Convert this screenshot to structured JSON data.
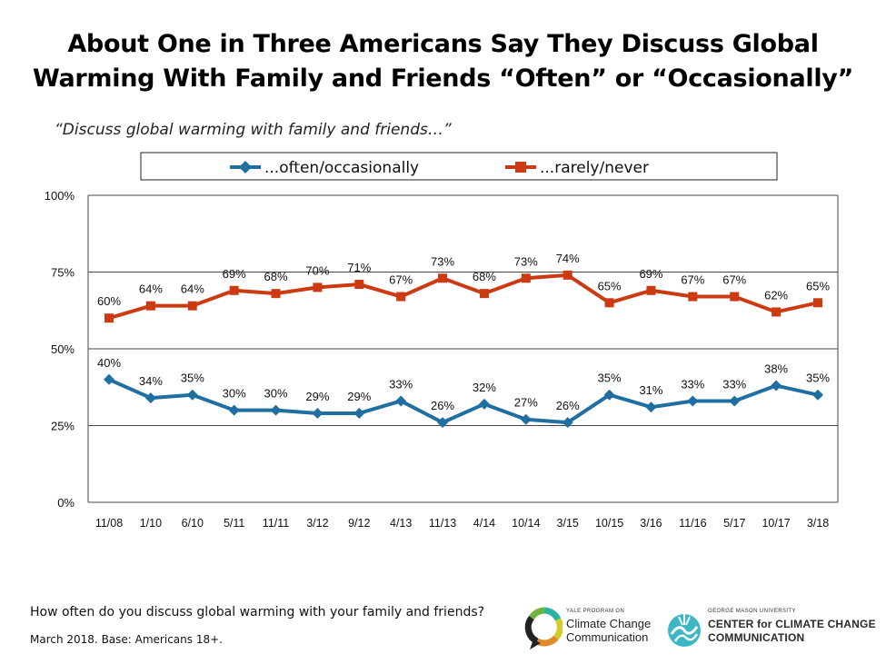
{
  "title_lines": [
    "About One in Three Americans Say They Discuss Global",
    "Warming With Family and Friends “Often” or “Occasionally”"
  ],
  "subtitle": "“Discuss global warming with family and friends…”",
  "colors": {
    "often": "#1f6fa3",
    "rarely": "#cc3a12",
    "grid": "#444444"
  },
  "chart_data": {
    "type": "line",
    "title": "About One in Three Americans Say They Discuss Global Warming With Family and Friends “Often” or “Occasionally”",
    "subtitle": "“Discuss global warming with family and friends…”",
    "categories": [
      "11/08",
      "1/10",
      "6/10",
      "5/11",
      "11/11",
      "3/12",
      "9/12",
      "4/13",
      "11/13",
      "4/14",
      "10/14",
      "3/15",
      "10/15",
      "3/16",
      "11/16",
      "5/17",
      "10/17",
      "3/18"
    ],
    "series": [
      {
        "name": "...often/occasionally",
        "marker": "diamond",
        "values": [
          40,
          34,
          35,
          30,
          30,
          29,
          29,
          33,
          26,
          32,
          27,
          26,
          35,
          31,
          33,
          33,
          38,
          35
        ]
      },
      {
        "name": "...rarely/never",
        "marker": "square",
        "values": [
          60,
          64,
          64,
          69,
          68,
          70,
          71,
          67,
          73,
          68,
          73,
          74,
          65,
          69,
          67,
          67,
          62,
          65
        ]
      }
    ],
    "ylim": [
      0,
      100
    ],
    "yticks": [
      0,
      25,
      50,
      75,
      100
    ],
    "ytick_labels": [
      "0%",
      "25%",
      "50%",
      "75%",
      "100%"
    ],
    "value_suffix": "%",
    "grid": "horizontal",
    "legend_position": "top"
  },
  "footer": {
    "question": "How often do you discuss global warming with your family and friends?",
    "source": "March 2018. Base: Americans 18+."
  },
  "logos": {
    "yale": {
      "line1": "YALE PROGRAM ON",
      "line2": "Climate Change",
      "line3": "Communication"
    },
    "gmu": {
      "line1": "GEORGE MASON UNIVERSITY",
      "line2": "CENTER for CLIMATE CHANGE",
      "line3": "COMMUNICATION"
    }
  }
}
